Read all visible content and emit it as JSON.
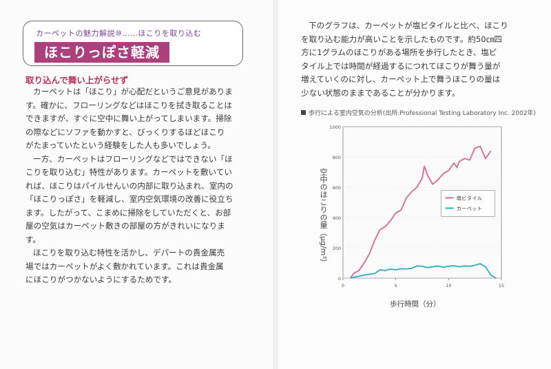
{
  "header": {
    "series_label": "カーペットの魅力解説⑩……ほこりを取り込む",
    "title": "ほこりっぽさ軽減"
  },
  "left": {
    "section_heading": "取り込んで舞い上がらせず",
    "paragraphs": [
      "カーペットは「ほこり」が心配だというご意見がありま",
      "す。確かに、フローリングなどはほこりを拭き取ることは",
      "できますが、すぐに空中に舞い上がってしまいます。掃除",
      "の際などにソファを動かすと、びっくりするほどほこり",
      "がたまっていたという経験をした人も多いでしょう。",
      "一方、カーペットはフローリングなどではできない「ほ",
      "こりを取り込む」特性があります。カーペットを敷いてい",
      "れば、ほこりはパイルせんいの内部に取り込まれ、室内の",
      "「ほこりっぽさ」を軽減し、室内空気環境の改善に役立ち",
      "ます。したがって、こまめに掃除をしていただくと、お部",
      "屋の空気はカーペット敷きの部屋の方がきれいになりま",
      "す。",
      "ほこりを取り込む特性を活かし、デパートの貴金属売",
      "場ではカーペットがよく敷かれています。これは貴金属",
      "にほこりがつかないようにするためです。"
    ]
  },
  "right": {
    "lines": [
      "下のグラフは、カーペットが塩ビタイルと比べ、ほこり",
      "を取り込む能力が高いことを示したものです。約50㎝四",
      "方に1グラムのほこりがある場所を歩行したとき、塩ビ",
      "タイル上では時間が経過するにつれてほこりが舞う量が",
      "増えていくのに対し、カーペット上で舞うほこりの量は",
      "少ない状態のままであることが分かります。"
    ]
  },
  "chart_data": {
    "type": "line",
    "title": "歩行による室内空気の分析(出所:Professional Testing Laboratory Inc. 2002年)",
    "xlabel": "歩行時間（分）",
    "ylabel": "空中のほこりの量（μg/m³）",
    "xlim": [
      0,
      15
    ],
    "ylim": [
      0,
      1000
    ],
    "x_ticks": [
      0,
      5,
      10,
      15
    ],
    "y_ticks": [
      0,
      200,
      400,
      600,
      800,
      1000
    ],
    "legend_position": "right-middle",
    "series": [
      {
        "name": "塩ビタイル",
        "color": "#d9739a",
        "points": [
          [
            0.7,
            0
          ],
          [
            1,
            30
          ],
          [
            1.5,
            50
          ],
          [
            2,
            100
          ],
          [
            2.5,
            160
          ],
          [
            3,
            250
          ],
          [
            3.5,
            320
          ],
          [
            4,
            340
          ],
          [
            4.5,
            380
          ],
          [
            5,
            430
          ],
          [
            5.5,
            450
          ],
          [
            6,
            530
          ],
          [
            6.5,
            570
          ],
          [
            7,
            600
          ],
          [
            7.5,
            660
          ],
          [
            7.7,
            740
          ],
          [
            8,
            680
          ],
          [
            8.5,
            620
          ],
          [
            9,
            650
          ],
          [
            9.5,
            690
          ],
          [
            10,
            710
          ],
          [
            10.5,
            760
          ],
          [
            10.8,
            730
          ],
          [
            11,
            770
          ],
          [
            11.5,
            790
          ],
          [
            12,
            780
          ],
          [
            12.5,
            860
          ],
          [
            13,
            870
          ],
          [
            13.5,
            790
          ],
          [
            14,
            840
          ]
        ]
      },
      {
        "name": "カーペット",
        "color": "#3fb2c0",
        "points": [
          [
            0.7,
            0
          ],
          [
            1,
            5
          ],
          [
            2,
            20
          ],
          [
            3,
            30
          ],
          [
            3.5,
            55
          ],
          [
            4,
            50
          ],
          [
            4.5,
            60
          ],
          [
            5,
            55
          ],
          [
            5.5,
            62
          ],
          [
            6,
            60
          ],
          [
            6.5,
            65
          ],
          [
            7,
            80
          ],
          [
            7.5,
            78
          ],
          [
            8,
            70
          ],
          [
            8.5,
            75
          ],
          [
            9,
            80
          ],
          [
            9.5,
            72
          ],
          [
            10,
            78
          ],
          [
            10.5,
            82
          ],
          [
            11,
            75
          ],
          [
            11.5,
            80
          ],
          [
            12,
            78
          ],
          [
            12.5,
            85
          ],
          [
            13,
            95
          ],
          [
            13.5,
            75
          ],
          [
            14,
            20
          ],
          [
            14.5,
            0
          ]
        ]
      }
    ]
  }
}
